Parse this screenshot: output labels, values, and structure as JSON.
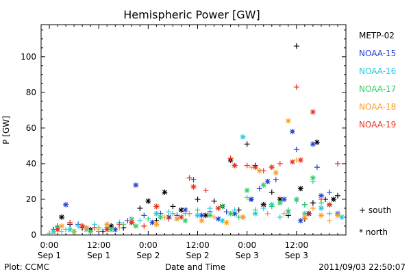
{
  "chart_data": {
    "type": "scatter",
    "title": "Hemispheric Power [GW]",
    "xlabel": "Date and Time",
    "ylabel": "P [GW]",
    "xlim_hours": [
      -2,
      72
    ],
    "ylim": [
      0,
      118
    ],
    "y_ticks": [
      0,
      20,
      40,
      60,
      80,
      100
    ],
    "x_ticks": [
      {
        "hour": 0,
        "time": "0:00",
        "date": "Sep 1"
      },
      {
        "hour": 12,
        "time": "12:00",
        "date": "Sep 1"
      },
      {
        "hour": 24,
        "time": "0:00",
        "date": "Sep 2"
      },
      {
        "hour": 36,
        "time": "12:00",
        "date": "Sep 2"
      },
      {
        "hour": 48,
        "time": "0:00",
        "date": "Sep 3"
      },
      {
        "hour": 60,
        "time": "12:00",
        "date": "Sep 3"
      }
    ],
    "legend_position": "right",
    "marker_legend": {
      "south": "+ south",
      "north": "* north"
    },
    "series": [
      {
        "name": "METP-02",
        "color": "#000000",
        "points": [
          [
            1,
            "s",
            3
          ],
          [
            3,
            "n",
            10
          ],
          [
            5,
            "s",
            6
          ],
          [
            8,
            "s",
            4
          ],
          [
            10,
            "n",
            3
          ],
          [
            13,
            "s",
            2
          ],
          [
            15,
            "n",
            5
          ],
          [
            18,
            "s",
            4
          ],
          [
            20,
            "n",
            7
          ],
          [
            22,
            "s",
            15
          ],
          [
            24,
            "n",
            19
          ],
          [
            26,
            "s",
            8
          ],
          [
            28,
            "n",
            24
          ],
          [
            30,
            "s",
            16
          ],
          [
            32,
            "n",
            14
          ],
          [
            34,
            "s",
            12
          ],
          [
            36,
            "s",
            20
          ],
          [
            38,
            "n",
            11
          ],
          [
            40,
            "s",
            19
          ],
          [
            42,
            "n",
            16
          ],
          [
            44,
            "n",
            42
          ],
          [
            46,
            "s",
            14
          ],
          [
            48,
            "s",
            51
          ],
          [
            49,
            "n",
            20
          ],
          [
            50,
            "s",
            39
          ],
          [
            52,
            "n",
            17
          ],
          [
            54,
            "s",
            24
          ],
          [
            56,
            "n",
            20
          ],
          [
            58,
            "s",
            11
          ],
          [
            60,
            "s",
            106
          ],
          [
            61,
            "n",
            26
          ],
          [
            62,
            "s",
            9
          ],
          [
            63,
            "n",
            12
          ],
          [
            64,
            "s",
            18
          ],
          [
            65,
            "n",
            52
          ],
          [
            67,
            "s",
            20
          ],
          [
            69,
            "n",
            20
          ],
          [
            70,
            "s",
            22
          ]
        ]
      },
      {
        "name": "NOAA-15",
        "color": "#1f3fd6",
        "points": [
          [
            2,
            "s",
            5
          ],
          [
            4,
            "n",
            17
          ],
          [
            7,
            "s",
            6
          ],
          [
            9,
            "n",
            4
          ],
          [
            12,
            "s",
            2
          ],
          [
            16,
            "n",
            3
          ],
          [
            19,
            "s",
            8
          ],
          [
            21,
            "n",
            28
          ],
          [
            23,
            "s",
            11
          ],
          [
            25,
            "n",
            7
          ],
          [
            27,
            "s",
            12
          ],
          [
            29,
            "n",
            10
          ],
          [
            31,
            "s",
            11
          ],
          [
            33,
            "n",
            14
          ],
          [
            35,
            "s",
            31
          ],
          [
            37,
            "n",
            11
          ],
          [
            39,
            "s",
            13
          ],
          [
            41,
            "n",
            9
          ],
          [
            43,
            "s",
            13
          ],
          [
            45,
            "n",
            12
          ],
          [
            47,
            "s",
            10
          ],
          [
            49,
            "n",
            20
          ],
          [
            51,
            "s",
            26
          ],
          [
            53,
            "n",
            30
          ],
          [
            55,
            "s",
            31
          ],
          [
            57,
            "n",
            20
          ],
          [
            59,
            "n",
            58
          ],
          [
            60,
            "s",
            48
          ],
          [
            61,
            "n",
            8
          ],
          [
            62,
            "s",
            17
          ],
          [
            64,
            "n",
            51
          ],
          [
            65,
            "s",
            38
          ],
          [
            66,
            "n",
            22
          ],
          [
            68,
            "s",
            24
          ],
          [
            70,
            "n",
            12
          ]
        ]
      },
      {
        "name": "NOAA-16",
        "color": "#22c8e0",
        "points": [
          [
            1,
            "n",
            2
          ],
          [
            3,
            "s",
            2
          ],
          [
            5,
            "n",
            3
          ],
          [
            7,
            "s",
            5
          ],
          [
            9,
            "n",
            3
          ],
          [
            11,
            "s",
            6
          ],
          [
            14,
            "n",
            4
          ],
          [
            17,
            "s",
            7
          ],
          [
            20,
            "n",
            9
          ],
          [
            22,
            "s",
            8
          ],
          [
            26,
            "n",
            12
          ],
          [
            29,
            "s",
            13
          ],
          [
            31,
            "n",
            9
          ],
          [
            33,
            "s",
            12
          ],
          [
            36,
            "n",
            11
          ],
          [
            39,
            "s",
            15
          ],
          [
            42,
            "n",
            8
          ],
          [
            45,
            "s",
            14
          ],
          [
            47,
            "n",
            55
          ],
          [
            48,
            "s",
            21
          ],
          [
            50,
            "n",
            12
          ],
          [
            52,
            "s",
            15
          ],
          [
            54,
            "n",
            17
          ],
          [
            56,
            "s",
            10
          ],
          [
            58,
            "n",
            13
          ],
          [
            60,
            "s",
            19
          ],
          [
            62,
            "n",
            12
          ],
          [
            64,
            "s",
            30
          ],
          [
            66,
            "n",
            15
          ],
          [
            68,
            "s",
            12
          ],
          [
            71,
            "n",
            10
          ]
        ]
      },
      {
        "name": "NOAA-17",
        "color": "#2ecf5e",
        "points": [
          [
            0,
            "s",
            1
          ],
          [
            2,
            "n",
            4
          ],
          [
            4,
            "s",
            3
          ],
          [
            6,
            "n",
            2
          ],
          [
            8,
            "s",
            5
          ],
          [
            10,
            "n",
            2
          ],
          [
            12,
            "s",
            4
          ],
          [
            15,
            "n",
            3
          ],
          [
            18,
            "s",
            6
          ],
          [
            21,
            "n",
            5
          ],
          [
            24,
            "s",
            9
          ],
          [
            27,
            "n",
            10
          ],
          [
            30,
            "s",
            12
          ],
          [
            33,
            "n",
            8
          ],
          [
            36,
            "s",
            14
          ],
          [
            39,
            "n",
            11
          ],
          [
            42,
            "s",
            16
          ],
          [
            44,
            "n",
            12
          ],
          [
            46,
            "s",
            10
          ],
          [
            48,
            "n",
            25
          ],
          [
            50,
            "s",
            14
          ],
          [
            52,
            "n",
            28
          ],
          [
            54,
            "s",
            16
          ],
          [
            56,
            "n",
            18
          ],
          [
            58,
            "s",
            14
          ],
          [
            60,
            "n",
            20
          ],
          [
            62,
            "s",
            17
          ],
          [
            64,
            "n",
            32
          ],
          [
            66,
            "s",
            18
          ],
          [
            68,
            "n",
            17
          ],
          [
            70,
            "s",
            12
          ]
        ]
      },
      {
        "name": "NOAA-18",
        "color": "#ff9a1f",
        "points": [
          [
            1,
            "s",
            1
          ],
          [
            3,
            "n",
            5
          ],
          [
            6,
            "s",
            2
          ],
          [
            9,
            "n",
            4
          ],
          [
            12,
            "s",
            3
          ],
          [
            14,
            "n",
            6
          ],
          [
            17,
            "s",
            4
          ],
          [
            20,
            "n",
            8
          ],
          [
            23,
            "s",
            5
          ],
          [
            26,
            "n",
            6
          ],
          [
            28,
            "s",
            10
          ],
          [
            31,
            "n",
            9
          ],
          [
            34,
            "s",
            12
          ],
          [
            37,
            "n",
            8
          ],
          [
            40,
            "s",
            10
          ],
          [
            43,
            "n",
            7
          ],
          [
            45,
            "s",
            39
          ],
          [
            47,
            "n",
            10
          ],
          [
            49,
            "s",
            38
          ],
          [
            51,
            "n",
            36
          ],
          [
            53,
            "s",
            12
          ],
          [
            55,
            "n",
            35
          ],
          [
            57,
            "s",
            12
          ],
          [
            58,
            "n",
            64
          ],
          [
            60,
            "s",
            42
          ],
          [
            62,
            "n",
            10
          ],
          [
            64,
            "s",
            15
          ],
          [
            66,
            "n",
            11
          ],
          [
            68,
            "s",
            8
          ],
          [
            70,
            "n",
            11
          ]
        ]
      },
      {
        "name": "NOAA-19",
        "color": "#e8301e",
        "points": [
          [
            2,
            "n",
            3
          ],
          [
            5,
            "s",
            7
          ],
          [
            8,
            "n",
            5
          ],
          [
            11,
            "s",
            4
          ],
          [
            14,
            "n",
            3
          ],
          [
            17,
            "s",
            6
          ],
          [
            20,
            "n",
            7
          ],
          [
            23,
            "s",
            5
          ],
          [
            26,
            "n",
            16
          ],
          [
            29,
            "s",
            9
          ],
          [
            32,
            "n",
            10
          ],
          [
            34,
            "s",
            32
          ],
          [
            35,
            "n",
            27
          ],
          [
            38,
            "s",
            25
          ],
          [
            41,
            "n",
            15
          ],
          [
            44,
            "s",
            43
          ],
          [
            45,
            "n",
            39
          ],
          [
            48,
            "s",
            39
          ],
          [
            50,
            "n",
            38
          ],
          [
            52,
            "s",
            36
          ],
          [
            54,
            "n",
            38
          ],
          [
            56,
            "s",
            40
          ],
          [
            59,
            "n",
            41
          ],
          [
            60,
            "s",
            83
          ],
          [
            61,
            "n",
            42
          ],
          [
            63,
            "s",
            12
          ],
          [
            64,
            "n",
            69
          ],
          [
            66,
            "s",
            20
          ],
          [
            68,
            "n",
            17
          ],
          [
            70,
            "s",
            40
          ]
        ]
      }
    ]
  },
  "footer": {
    "left": "Plot: CCMC",
    "right": "2011/09/03 22:50:07"
  }
}
